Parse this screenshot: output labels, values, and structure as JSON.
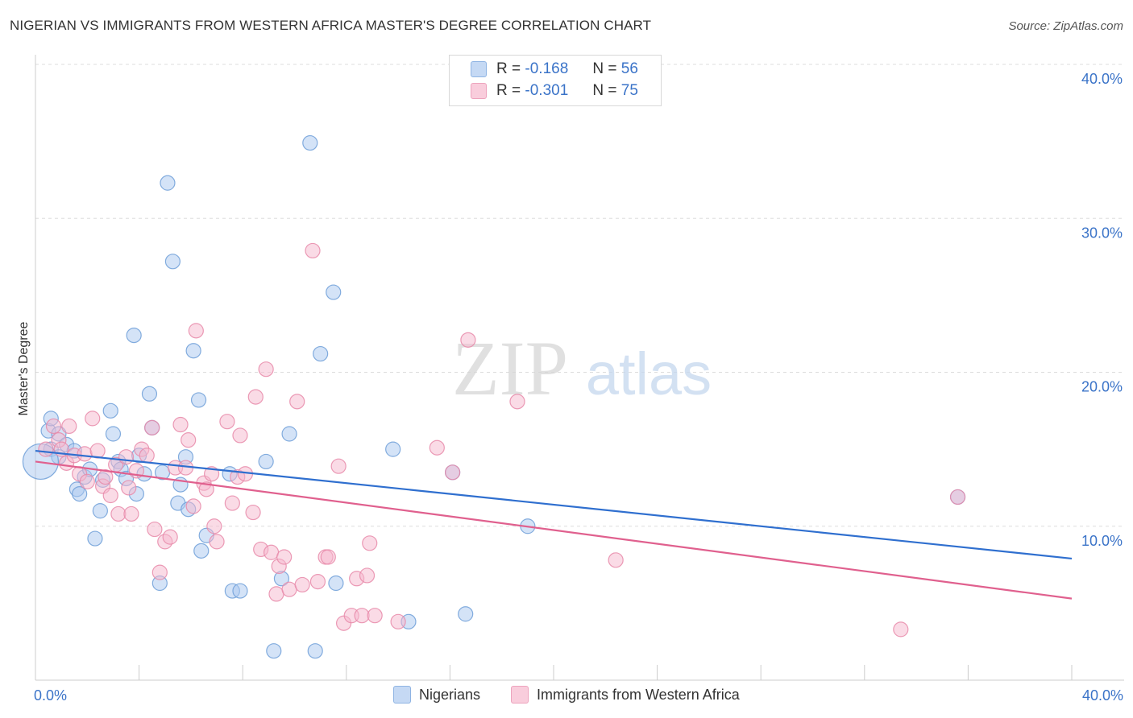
{
  "title": "NIGERIAN VS IMMIGRANTS FROM WESTERN AFRICA MASTER'S DEGREE CORRELATION CHART",
  "source": "Source: ZipAtlas.com",
  "watermark": {
    "zip": "ZIP",
    "atlas": "atlas"
  },
  "legend_top": {
    "rows": [
      {
        "r_label": "R =",
        "r_value": "-0.168",
        "n_label": "N =",
        "n_value": "56"
      },
      {
        "r_label": "R =",
        "r_value": "-0.301",
        "n_label": "N =",
        "n_value": "75"
      }
    ]
  },
  "colors": {
    "blue_fill": "#a9c8ef",
    "blue_stroke": "#6e9fd8",
    "blue_line": "#2f6fcf",
    "pink_fill": "#f6b8cd",
    "pink_stroke": "#e88aa9",
    "pink_line": "#e0608e",
    "accent_text": "#3a73c8",
    "grid": "#dddddd"
  },
  "chart_data": {
    "type": "scatter",
    "title": "NIGERIAN VS IMMIGRANTS FROM WESTERN AFRICA MASTER'S DEGREE CORRELATION CHART",
    "xlabel": "",
    "ylabel": "Master's Degree",
    "xlim": [
      0,
      40
    ],
    "ylim": [
      0,
      40
    ],
    "x_tick_labels": [
      "0.0%",
      "40.0%"
    ],
    "y_ticks": [
      10,
      20,
      30,
      40
    ],
    "y_tick_labels": [
      "10.0%",
      "20.0%",
      "30.0%",
      "40.0%"
    ],
    "grid": true,
    "legend_position": "bottom",
    "series": [
      {
        "name": "Nigerians",
        "color": "blue",
        "r": -0.168,
        "n": 56,
        "trend": {
          "x": [
            0,
            40
          ],
          "y": [
            14.9,
            7.9
          ]
        },
        "points": [
          [
            0.5,
            16.2
          ],
          [
            0.6,
            17.0
          ],
          [
            0.6,
            15.0
          ],
          [
            0.9,
            16.0
          ],
          [
            0.9,
            14.5
          ],
          [
            1.2,
            15.3
          ],
          [
            1.5,
            14.9
          ],
          [
            1.6,
            12.4
          ],
          [
            1.7,
            12.1
          ],
          [
            1.9,
            13.2
          ],
          [
            2.1,
            13.7
          ],
          [
            2.3,
            9.2
          ],
          [
            2.5,
            11.0
          ],
          [
            2.6,
            13.0
          ],
          [
            2.9,
            17.5
          ],
          [
            3.0,
            16.0
          ],
          [
            3.2,
            14.2
          ],
          [
            3.3,
            13.7
          ],
          [
            3.5,
            13.1
          ],
          [
            3.8,
            22.4
          ],
          [
            3.9,
            12.1
          ],
          [
            4.0,
            14.6
          ],
          [
            4.2,
            13.4
          ],
          [
            4.4,
            18.6
          ],
          [
            4.5,
            16.4
          ],
          [
            4.8,
            6.3
          ],
          [
            4.9,
            13.5
          ],
          [
            5.1,
            32.3
          ],
          [
            5.3,
            27.2
          ],
          [
            5.5,
            11.5
          ],
          [
            5.6,
            12.7
          ],
          [
            5.8,
            14.5
          ],
          [
            5.9,
            11.1
          ],
          [
            6.1,
            21.4
          ],
          [
            6.3,
            18.2
          ],
          [
            6.4,
            8.4
          ],
          [
            6.6,
            9.4
          ],
          [
            7.5,
            13.4
          ],
          [
            7.6,
            5.8
          ],
          [
            7.9,
            5.8
          ],
          [
            8.9,
            14.2
          ],
          [
            9.2,
            1.9
          ],
          [
            9.5,
            6.6
          ],
          [
            9.8,
            16.0
          ],
          [
            10.6,
            34.9
          ],
          [
            10.8,
            1.9
          ],
          [
            11.0,
            21.2
          ],
          [
            11.5,
            25.2
          ],
          [
            11.6,
            6.3
          ],
          [
            13.8,
            15.0
          ],
          [
            14.4,
            3.8
          ],
          [
            16.1,
            13.5
          ],
          [
            16.6,
            4.3
          ],
          [
            19.0,
            10.0
          ],
          [
            35.6,
            11.9
          ],
          [
            0.2,
            14.2
          ]
        ]
      },
      {
        "name": "Immigrants from Western Africa",
        "color": "pink",
        "r": -0.301,
        "n": 75,
        "trend": {
          "x": [
            0,
            40
          ],
          "y": [
            14.2,
            5.3
          ]
        },
        "points": [
          [
            0.4,
            15.0
          ],
          [
            0.7,
            16.5
          ],
          [
            0.9,
            15.6
          ],
          [
            1.0,
            15.0
          ],
          [
            1.2,
            14.1
          ],
          [
            1.3,
            16.5
          ],
          [
            1.5,
            14.6
          ],
          [
            1.7,
            13.4
          ],
          [
            1.9,
            14.7
          ],
          [
            2.0,
            12.9
          ],
          [
            2.2,
            17.0
          ],
          [
            2.4,
            14.9
          ],
          [
            2.6,
            12.6
          ],
          [
            2.7,
            13.2
          ],
          [
            2.9,
            12.0
          ],
          [
            3.1,
            14.0
          ],
          [
            3.2,
            10.8
          ],
          [
            3.5,
            14.5
          ],
          [
            3.6,
            12.5
          ],
          [
            3.7,
            10.8
          ],
          [
            3.9,
            13.6
          ],
          [
            4.1,
            15.0
          ],
          [
            4.3,
            14.6
          ],
          [
            4.5,
            16.4
          ],
          [
            4.6,
            9.8
          ],
          [
            4.8,
            7.0
          ],
          [
            5.0,
            9.0
          ],
          [
            5.2,
            9.3
          ],
          [
            5.4,
            13.8
          ],
          [
            5.6,
            16.6
          ],
          [
            5.8,
            13.8
          ],
          [
            5.9,
            15.6
          ],
          [
            6.1,
            11.3
          ],
          [
            6.2,
            22.7
          ],
          [
            6.5,
            12.8
          ],
          [
            6.6,
            12.4
          ],
          [
            6.8,
            13.4
          ],
          [
            6.9,
            10.0
          ],
          [
            7.0,
            9.0
          ],
          [
            7.4,
            16.8
          ],
          [
            7.6,
            11.5
          ],
          [
            7.8,
            13.2
          ],
          [
            7.9,
            15.9
          ],
          [
            8.1,
            13.4
          ],
          [
            8.4,
            10.9
          ],
          [
            8.5,
            18.4
          ],
          [
            8.7,
            8.5
          ],
          [
            8.9,
            20.2
          ],
          [
            9.1,
            8.3
          ],
          [
            9.3,
            5.6
          ],
          [
            9.4,
            7.4
          ],
          [
            9.6,
            8.0
          ],
          [
            9.8,
            5.9
          ],
          [
            10.1,
            18.1
          ],
          [
            10.3,
            6.2
          ],
          [
            10.7,
            27.9
          ],
          [
            10.9,
            6.4
          ],
          [
            11.2,
            8.0
          ],
          [
            11.3,
            8.0
          ],
          [
            11.7,
            13.9
          ],
          [
            11.9,
            3.7
          ],
          [
            12.2,
            4.2
          ],
          [
            12.4,
            6.6
          ],
          [
            12.6,
            4.2
          ],
          [
            12.8,
            6.8
          ],
          [
            12.9,
            8.9
          ],
          [
            13.1,
            4.2
          ],
          [
            14.0,
            3.8
          ],
          [
            15.5,
            15.1
          ],
          [
            16.1,
            13.5
          ],
          [
            16.7,
            22.1
          ],
          [
            18.6,
            18.1
          ],
          [
            22.4,
            7.8
          ],
          [
            33.4,
            3.3
          ],
          [
            35.6,
            11.9
          ]
        ]
      }
    ]
  }
}
